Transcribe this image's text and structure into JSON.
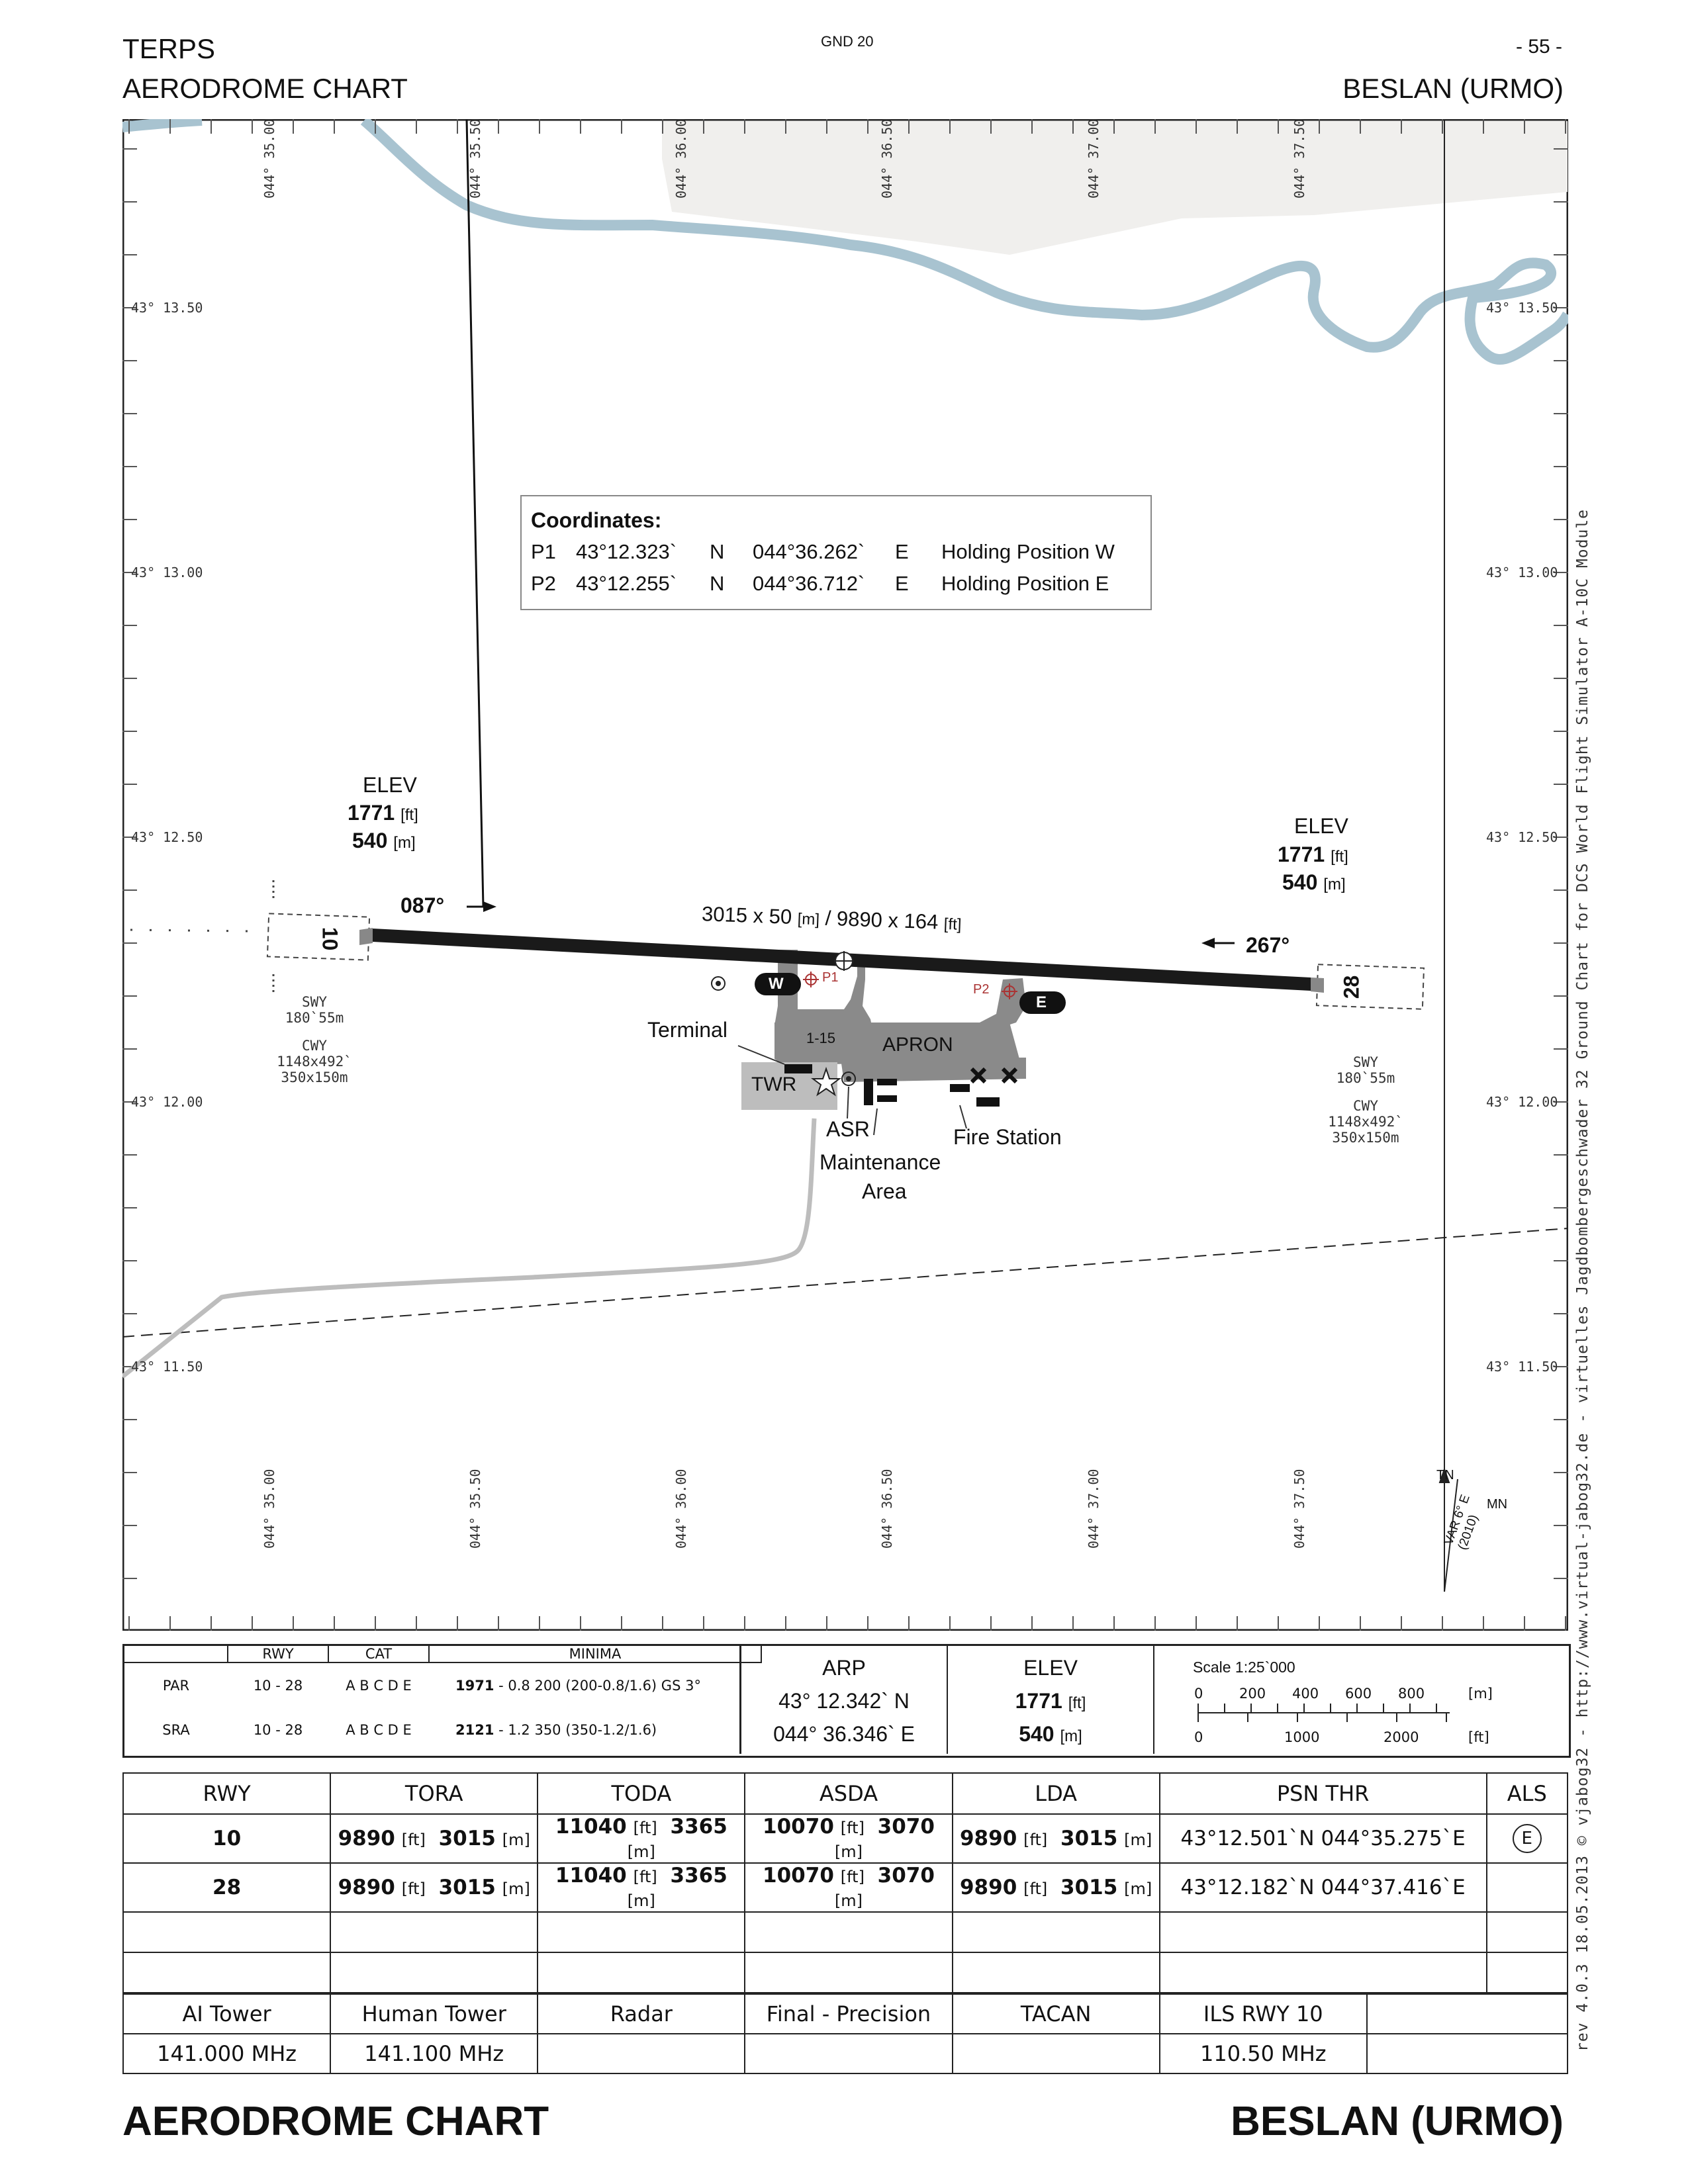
{
  "header": {
    "left_line1": "TERPS",
    "left_line2": "AERODROME CHART",
    "center": "GND 20",
    "page": "- 55 -",
    "right_line2": "BESLAN (URMO)"
  },
  "side_text": "rev 4.0.3  18.05.2013  © vjabog32 - http://www.virtual-jabog32.de - virtuelles Jagdbombergeschwader 32    Ground Chart for DCS World Flight Simulator A-10C Module",
  "grid": {
    "lon_labels": [
      "044° 35.00",
      "044° 35.50",
      "044° 36.00",
      "044° 36.50",
      "044° 37.00",
      "044° 37.50"
    ],
    "lat_labels": [
      "43° 13.50",
      "43° 13.00",
      "43° 12.50",
      "43° 12.00",
      "43° 11.50"
    ]
  },
  "coordinates_box": {
    "title": "Coordinates:",
    "rows": [
      {
        "id": "P1",
        "lat": "43°12.323`",
        "ns": "N",
        "lon": "044°36.262`",
        "ew": "E",
        "desc": "Holding Position W"
      },
      {
        "id": "P2",
        "lat": "43°12.255`",
        "ns": "N",
        "lon": "044°36.712`",
        "ew": "E",
        "desc": "Holding Position  E"
      }
    ]
  },
  "chart": {
    "elev_w": {
      "label": "ELEV",
      "ft": "1771",
      "ft_unit": "[ft]",
      "m": "540",
      "m_unit": "[m]"
    },
    "elev_e": {
      "label": "ELEV",
      "ft": "1771",
      "ft_unit": "[ft]",
      "m": "540",
      "m_unit": "[m]"
    },
    "hdg_w": "087°",
    "hdg_e": "267°",
    "rwy_dims": "3015 x 50",
    "rwy_dims_m_unit": "[m]",
    "rwy_dims_sep": " / 9890 x 164",
    "rwy_dims_ft_unit": "[ft]",
    "rwy_10": "10",
    "rwy_28": "28",
    "swy_w": [
      "SWY",
      "180`55m",
      "CWY",
      "1148x492`",
      "350x150m"
    ],
    "swy_e": [
      "SWY",
      "180`55m",
      "CWY",
      "1148x492`",
      "350x150m"
    ],
    "taxi_w": "W",
    "taxi_e": "E",
    "p1": "P1",
    "p2": "P2",
    "apron": "APRON",
    "stand": "1-15",
    "twr": "TWR",
    "terminal": "Terminal",
    "asr": "ASR",
    "maint1": "Maintenance",
    "maint2": "Area",
    "fire": "Fire Station",
    "tn": "TN",
    "mn": "MN",
    "var1": "VAR 6° E",
    "var2": "(2010)"
  },
  "minima_table": {
    "headers": [
      "RWY",
      "CAT",
      "MINIMA"
    ],
    "rows": [
      {
        "type": "PAR",
        "rwy": "10 - 28",
        "cat": "A B C D E",
        "min_b": "1971",
        "min": " - 0.8 200 (200-0.8/1.6) GS 3°"
      },
      {
        "type": "SRA",
        "rwy": "10 - 28",
        "cat": "A B C D E",
        "min_b": "2121",
        "min": " - 1.2 350 (350-1.2/1.6)"
      }
    ],
    "arp_label": "ARP",
    "arp_lat": "43° 12.342`  N",
    "arp_lon": "044° 36.346`  E",
    "elev_label": "ELEV",
    "elev_ft": "1771",
    "elev_ft_unit": "[ft]",
    "elev_m": "540",
    "elev_m_unit": "[m]",
    "scale_title": "Scale 1:25`000",
    "scale_m": [
      "0",
      "200",
      "400",
      "600",
      "800"
    ],
    "scale_m_unit": "[m]",
    "scale_ft": [
      "0",
      "1000",
      "2000"
    ],
    "scale_ft_unit": "[ft]"
  },
  "runway_table": {
    "headers": [
      "RWY",
      "TORA",
      "TODA",
      "ASDA",
      "LDA",
      "PSN THR",
      "ALS"
    ],
    "rows": [
      {
        "rwy": "10",
        "tora_ft": "9890",
        "tora_m": "3015",
        "toda_ft": "11040",
        "toda_m": "3365",
        "asda_ft": "10070",
        "asda_m": "3070",
        "lda_ft": "9890",
        "lda_m": "3015",
        "psn": "43°12.501`N  044°35.275`E",
        "als": "E"
      },
      {
        "rwy": "28",
        "tora_ft": "9890",
        "tora_m": "3015",
        "toda_ft": "11040",
        "toda_m": "3365",
        "asda_ft": "10070",
        "asda_m": "3070",
        "lda_ft": "9890",
        "lda_m": "3015",
        "psn": "43°12.182`N  044°37.416`E",
        "als": ""
      }
    ],
    "ft_unit": "[ft]",
    "m_unit": "[m]"
  },
  "freq_table": {
    "headers": [
      "AI Tower",
      "Human Tower",
      "Radar",
      "Final - Precision",
      "TACAN",
      "ILS RWY 10",
      ""
    ],
    "values": [
      "141.000 MHz",
      "141.100 MHz",
      "",
      "",
      "",
      "110.50 MHz",
      ""
    ]
  },
  "footer": {
    "left": "AERODROME CHART",
    "right": "BESLAN (URMO)"
  }
}
